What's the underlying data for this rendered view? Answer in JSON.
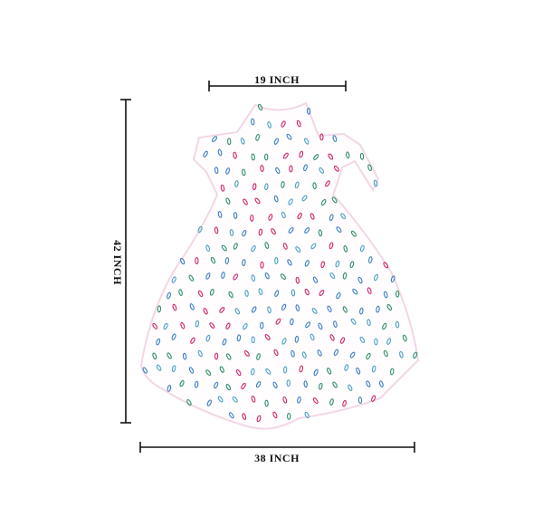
{
  "dimensions": {
    "top_width": "19 INCH",
    "height": "42 INCH",
    "bottom_width": "38 INCH"
  }
}
